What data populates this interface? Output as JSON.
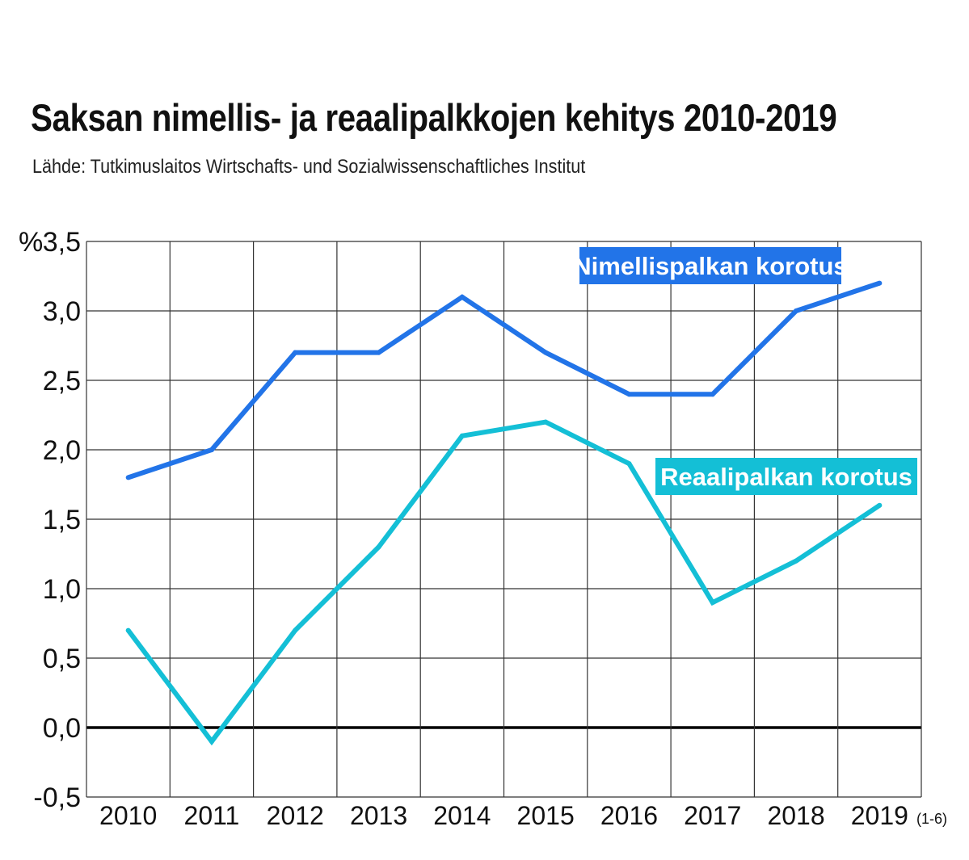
{
  "header": {
    "title": "Saksan nimellis- ja reaalipalkkojen kehitys 2010-2019",
    "subtitle": "Lähde: Tutkimuslaitos Wirtschafts- und Sozialwissenschaftliches Institut"
  },
  "chart_data": {
    "type": "line",
    "y_unit": "%",
    "categories": [
      "2010",
      "2011",
      "2012",
      "2013",
      "2014",
      "2015",
      "2016",
      "2017",
      "2018",
      "2019"
    ],
    "last_category_note": "(1-6)",
    "y_ticks": [
      "-0,5",
      "0,0",
      "0,5",
      "1,0",
      "1,5",
      "2,0",
      "2,5",
      "3,0",
      "3,5"
    ],
    "ylim": [
      -0.5,
      3.5
    ],
    "grid": true,
    "series": [
      {
        "name": "Nimellispalkan korotus",
        "color": "#2274e8",
        "values": [
          1.8,
          2.0,
          2.7,
          2.7,
          3.1,
          2.7,
          2.4,
          2.4,
          3.0,
          3.2
        ]
      },
      {
        "name": "Reaalipalkan korotus",
        "color": "#14bfd6",
        "values": [
          0.7,
          -0.1,
          0.7,
          1.3,
          2.1,
          2.2,
          1.9,
          0.9,
          1.2,
          1.6
        ]
      }
    ]
  }
}
